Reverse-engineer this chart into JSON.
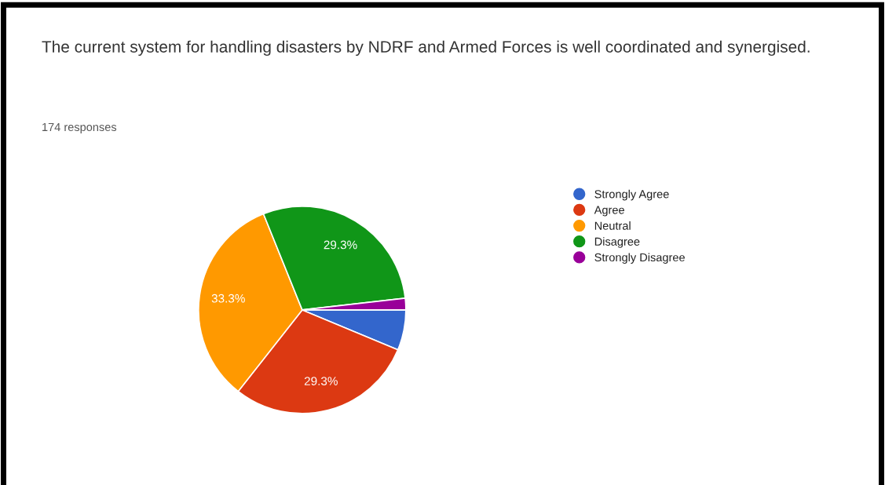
{
  "chart_data": {
    "type": "pie",
    "title": "The current system for handling disasters by NDRF and Armed Forces is well coordinated and synergised.",
    "subtitle": "174 responses",
    "categories": [
      "Strongly Agree",
      "Agree",
      "Neutral",
      "Disagree",
      "Strongly Disagree"
    ],
    "values": [
      6.3,
      29.3,
      33.3,
      29.3,
      1.8
    ],
    "colors": [
      "#3366cc",
      "#dc3912",
      "#ff9900",
      "#109618",
      "#990099"
    ],
    "value_labels": [
      null,
      "29.3%",
      "33.3%",
      "29.3%",
      null
    ],
    "legend": "right"
  }
}
